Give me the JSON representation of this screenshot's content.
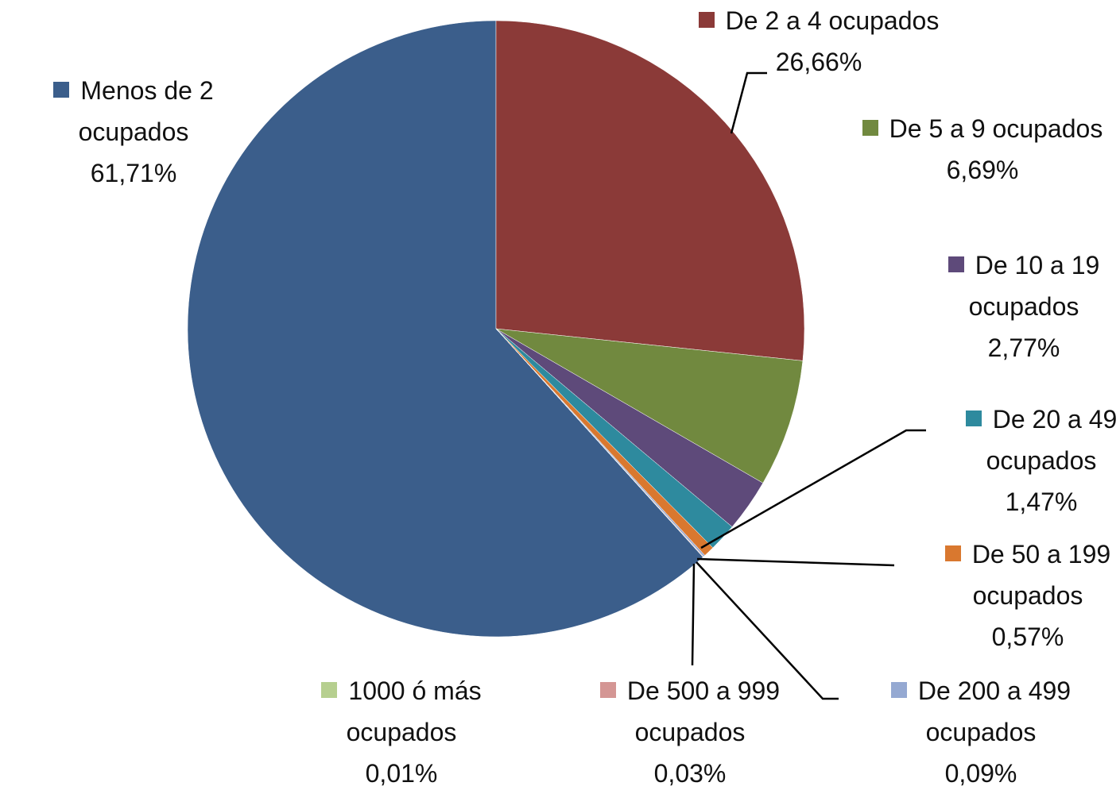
{
  "chart_data": {
    "type": "pie",
    "categories": [
      "Menos de 2 ocupados",
      "De 2 a 4 ocupados",
      "De 5 a 9 ocupados",
      "De 10 a 19 ocupados",
      "De 20 a 49 ocupados",
      "De 50 a 199 ocupados",
      "De 200 a 499 ocupados",
      "De 500 a 999 ocupados",
      "1000 ó más ocupados"
    ],
    "values": [
      61.71,
      26.66,
      6.69,
      2.77,
      1.47,
      0.57,
      0.09,
      0.03,
      0.01
    ],
    "value_labels": [
      "61,71%",
      "26,66%",
      "6,69%",
      "2,77%",
      "1,47%",
      "0,57%",
      "0,09%",
      "0,03%",
      "0,01%"
    ],
    "colors": [
      "#3b5e8b",
      "#8b3a38",
      "#71893f",
      "#5e4a7a",
      "#2e8a9e",
      "#d9782f",
      "#95a9d2",
      "#d49694",
      "#b6cf8f"
    ]
  }
}
